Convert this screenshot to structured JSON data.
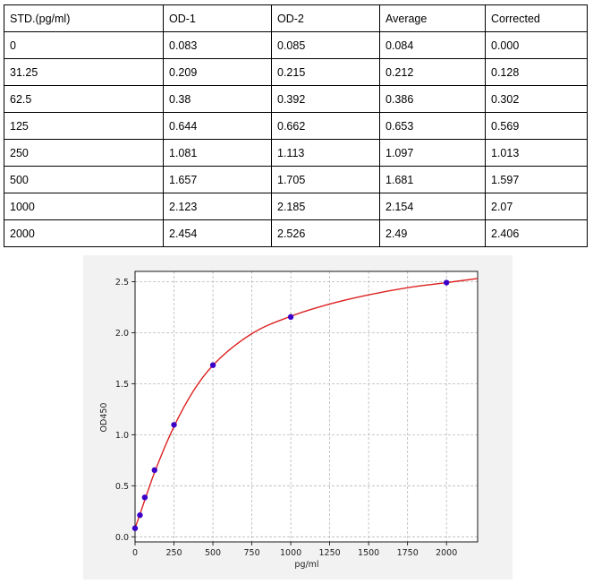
{
  "table": {
    "headers": [
      "STD.(pg/ml)",
      "OD-1",
      "OD-2",
      "Average",
      "Corrected"
    ],
    "rows": [
      [
        "0",
        "0.083",
        "0.085",
        "0.084",
        "0.000"
      ],
      [
        "31.25",
        "0.209",
        "0.215",
        "0.212",
        "0.128"
      ],
      [
        "62.5",
        "0.38",
        "0.392",
        "0.386",
        "0.302"
      ],
      [
        "125",
        "0.644",
        "0.662",
        "0.653",
        "0.569"
      ],
      [
        "250",
        "1.081",
        "1.113",
        "1.097",
        "1.013"
      ],
      [
        "500",
        "1.657",
        "1.705",
        "1.681",
        "1.597"
      ],
      [
        "1000",
        "2.123",
        "2.185",
        "2.154",
        "2.07"
      ],
      [
        "2000",
        "2.454",
        "2.526",
        "2.49",
        "2.406"
      ]
    ]
  },
  "chart_data": {
    "type": "scatter",
    "title": "",
    "xlabel": "pg/ml",
    "ylabel": "OD450",
    "xlim": [
      0,
      2200
    ],
    "ylim": [
      -0.05,
      2.6
    ],
    "xticks": [
      0,
      250,
      500,
      750,
      1000,
      1250,
      1500,
      1750,
      2000
    ],
    "yticks": [
      0.0,
      0.5,
      1.0,
      1.5,
      2.0,
      2.5
    ],
    "xtick_labels": [
      "0",
      "250",
      "500",
      "750",
      "1000",
      "1250",
      "1500",
      "1750",
      "2000"
    ],
    "ytick_labels": [
      "0.0",
      "0.5",
      "1.0",
      "1.5",
      "2.0",
      "2.5"
    ],
    "grid": true,
    "series": [
      {
        "type": "scatter",
        "color": "#3a00c8",
        "x": [
          0,
          31.25,
          62.5,
          125,
          250,
          500,
          1000,
          2000
        ],
        "y": [
          0.084,
          0.212,
          0.386,
          0.653,
          1.097,
          1.681,
          2.154,
          2.49
        ]
      },
      {
        "type": "line",
        "color": "#dd2222",
        "x": [
          0,
          31.25,
          62.5,
          125,
          250,
          375,
          500,
          750,
          1000,
          1250,
          1500,
          1750,
          2000,
          2200
        ],
        "y": [
          0.085,
          0.22,
          0.36,
          0.63,
          1.08,
          1.43,
          1.68,
          1.99,
          2.16,
          2.28,
          2.37,
          2.44,
          2.49,
          2.53
        ]
      }
    ]
  }
}
